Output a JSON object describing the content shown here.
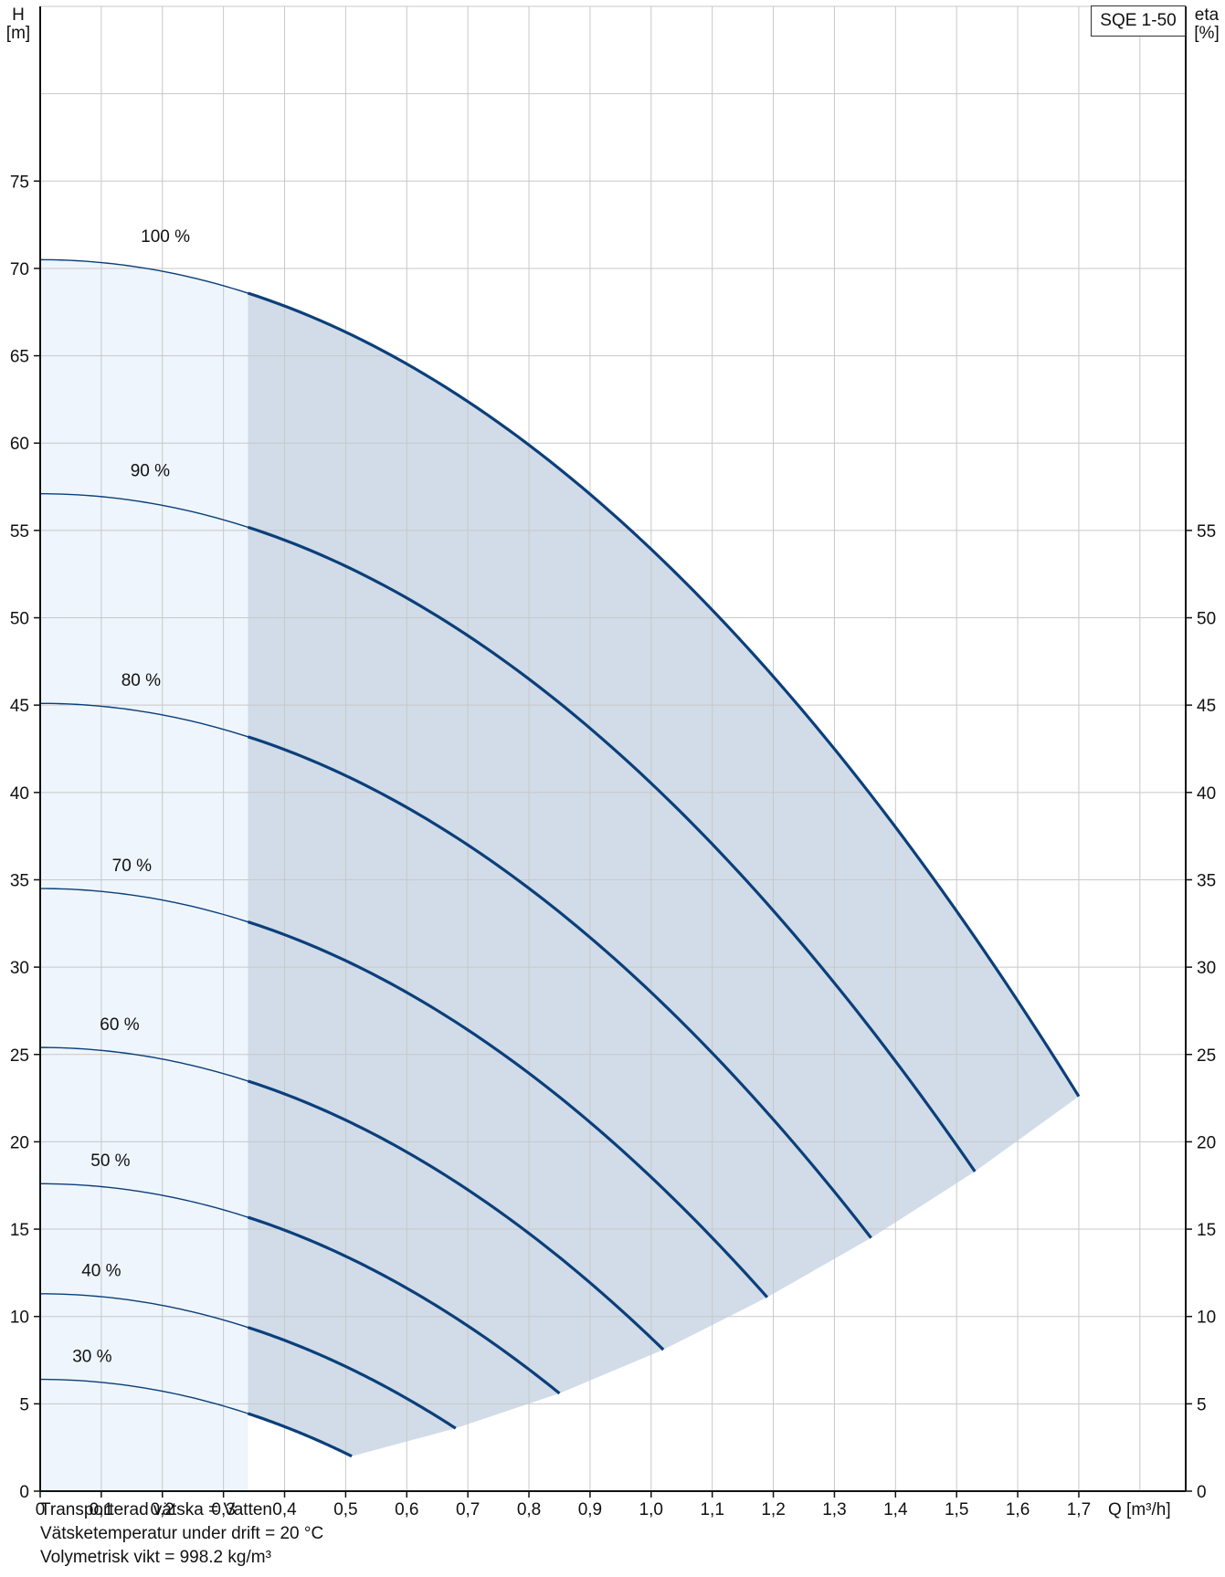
{
  "chart_data": {
    "type": "line",
    "title": "",
    "model": "SQE 1-50",
    "xlabel": "Q [m³/h]",
    "ylabel_left": [
      "H",
      "[m]"
    ],
    "ylabel_right": [
      "eta",
      "[%]"
    ],
    "xlim": [
      0,
      1.875
    ],
    "ylim": [
      0,
      85
    ],
    "x_ticks": [
      "0",
      "0,1",
      "0,2",
      "0,3",
      "0,4",
      "0,5",
      "0,6",
      "0,7",
      "0,8",
      "0,9",
      "1,0",
      "1,1",
      "1,2",
      "1,3",
      "1,4",
      "1,5",
      "1,6",
      "1,7"
    ],
    "y_ticks_left": [
      "0",
      "5",
      "10",
      "15",
      "20",
      "25",
      "30",
      "35",
      "40",
      "45",
      "50",
      "55",
      "60",
      "65",
      "70",
      "75"
    ],
    "y_ticks_right": [
      "0",
      "5",
      "10",
      "15",
      "20",
      "25",
      "30",
      "35",
      "40",
      "45",
      "50",
      "55"
    ],
    "grid": true,
    "allowed_range_min_q": 0.34,
    "series": [
      {
        "name": "100 %",
        "h0": 70.5,
        "q_end": 1.7,
        "h_end": 22.6,
        "label_x": 0.205,
        "label_y": 71.5
      },
      {
        "name": "90 %",
        "h0": 57.1,
        "q_end": 1.53,
        "h_end": 18.3,
        "label_x": 0.18,
        "label_y": 58.1
      },
      {
        "name": "80 %",
        "h0": 45.1,
        "q_end": 1.36,
        "h_end": 14.5,
        "label_x": 0.165,
        "label_y": 46.1
      },
      {
        "name": "70 %",
        "h0": 34.5,
        "q_end": 1.19,
        "h_end": 11.1,
        "label_x": 0.15,
        "label_y": 35.5
      },
      {
        "name": "60 %",
        "h0": 25.4,
        "q_end": 1.02,
        "h_end": 8.1,
        "label_x": 0.13,
        "label_y": 26.4
      },
      {
        "name": "50 %",
        "h0": 17.6,
        "q_end": 0.85,
        "h_end": 5.6,
        "label_x": 0.115,
        "label_y": 18.6
      },
      {
        "name": "40 %",
        "h0": 11.3,
        "q_end": 0.68,
        "h_end": 3.6,
        "label_x": 0.1,
        "label_y": 12.3
      },
      {
        "name": "30 %",
        "h0": 6.4,
        "q_end": 0.51,
        "h_end": 2.0,
        "label_x": 0.085,
        "label_y": 7.4
      }
    ],
    "lower_boundary": [
      [
        0.51,
        2.0
      ],
      [
        0.68,
        3.6
      ],
      [
        0.85,
        5.6
      ],
      [
        1.02,
        8.1
      ],
      [
        1.19,
        11.1
      ],
      [
        1.36,
        14.5
      ],
      [
        1.53,
        18.3
      ],
      [
        1.7,
        22.6
      ]
    ],
    "colors": {
      "curve": "#0b3f7a",
      "allowed_fill": "#d1dce8",
      "low_flow_fill": "#eef5fc",
      "grid": "#c8c8c8"
    }
  },
  "notes": [
    "Transporterad vätska = Vatten",
    "Vätsketemperatur under drift = 20 °C",
    "Volymetrisk vikt = 998.2 kg/m³"
  ]
}
